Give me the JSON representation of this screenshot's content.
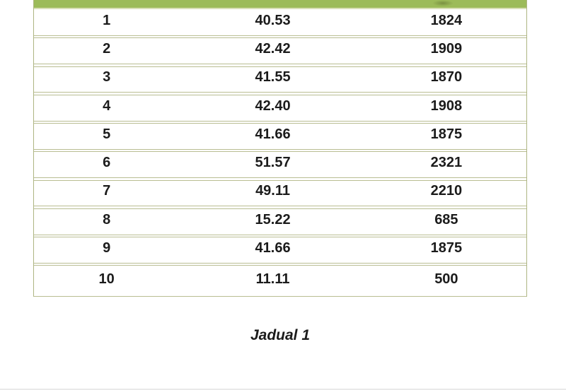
{
  "colors": {
    "accent_green": "#9cbb59",
    "table_border": "#b9bd92",
    "text": "#1b1b1b",
    "page_bottom_rule": "#e9e9e9"
  },
  "table": {
    "header_band_color": "#9cbb59",
    "rows": [
      {
        "cells": [
          "1",
          "40.53",
          "1824"
        ]
      },
      {
        "cells": [
          "2",
          "42.42",
          "1909"
        ]
      },
      {
        "cells": [
          "3",
          "41.55",
          "1870"
        ]
      },
      {
        "cells": [
          "4",
          "42.40",
          "1908"
        ]
      },
      {
        "cells": [
          "5",
          "41.66",
          "1875"
        ]
      },
      {
        "cells": [
          "6",
          "51.57",
          "2321"
        ]
      },
      {
        "cells": [
          "7",
          "49.11",
          "2210"
        ]
      },
      {
        "cells": [
          "8",
          "15.22",
          "685"
        ]
      },
      {
        "cells": [
          "9",
          "41.66",
          "1875"
        ]
      },
      {
        "cells": [
          "10",
          "11.11",
          "500"
        ]
      }
    ]
  },
  "caption": {
    "text": "Jadual 1"
  }
}
